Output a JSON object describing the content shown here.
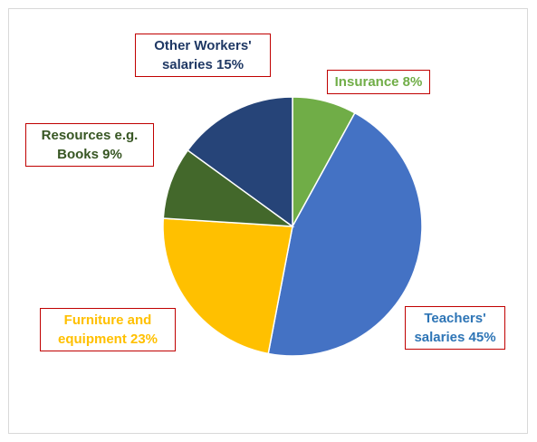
{
  "chart_data": {
    "type": "pie",
    "title": "",
    "slices": [
      {
        "label_lines": [
          "Insurance 8%"
        ],
        "value": 8,
        "color": "#70ad47",
        "text_color": "#70ad47"
      },
      {
        "label_lines": [
          "Teachers'",
          "salaries 45%"
        ],
        "value": 45,
        "color": "#4472c4",
        "text_color": "#2e75b6"
      },
      {
        "label_lines": [
          "Furniture and",
          "equipment 23%"
        ],
        "value": 23,
        "color": "#ffc000",
        "text_color": "#ffc000"
      },
      {
        "label_lines": [
          "Resources e.g.",
          "Books 9%"
        ],
        "value": 9,
        "color": "#43682b",
        "text_color": "#375623"
      },
      {
        "label_lines": [
          "Other Workers'",
          "salaries 15%"
        ],
        "value": 15,
        "color": "#264478",
        "text_color": "#1f3864"
      }
    ],
    "legend": "none",
    "start_angle_deg": 0,
    "direction": "clockwise"
  }
}
